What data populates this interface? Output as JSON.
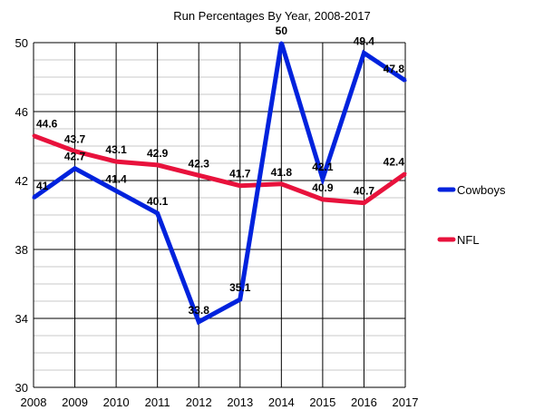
{
  "chart_data": {
    "type": "line",
    "title": "Run Percentages By Year, 2008-2017",
    "xlabel": "",
    "ylabel": "",
    "x": [
      "2008",
      "2009",
      "2010",
      "2011",
      "2012",
      "2013",
      "2014",
      "2015",
      "2016",
      "2017"
    ],
    "ylim": [
      30,
      50
    ],
    "yticks": [
      "30",
      "34",
      "38",
      "42",
      "46",
      "50"
    ],
    "grid": true,
    "legend_position": "right",
    "series": [
      {
        "name": "Cowboys",
        "color": "#0022dd",
        "values": [
          41,
          42.7,
          41.4,
          40.1,
          33.8,
          35.1,
          50,
          42.1,
          49.4,
          47.8
        ],
        "labels": [
          "41",
          "42.7",
          "41.4",
          "40.1",
          "33.8",
          "35.1",
          "50",
          "42.1",
          "49.4",
          "47.8"
        ]
      },
      {
        "name": "NFL",
        "color": "#e8123c",
        "values": [
          44.6,
          43.7,
          43.1,
          42.9,
          42.3,
          41.7,
          41.8,
          40.9,
          40.7,
          42.4
        ],
        "labels": [
          "44.6",
          "43.7",
          "43.1",
          "42.9",
          "42.3",
          "41.7",
          "41.8",
          "40.9",
          "40.7",
          "42.4"
        ]
      }
    ]
  }
}
